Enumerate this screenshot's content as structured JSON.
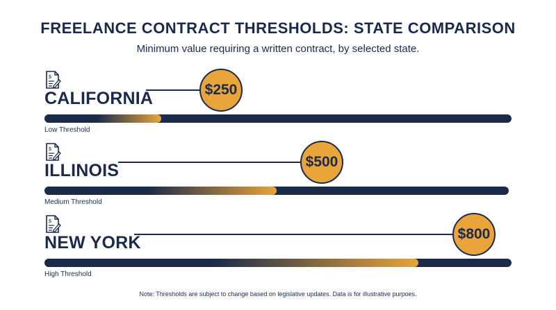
{
  "title": "FREELANCE CONTRACT THRESHOLDS: STATE COMPARISON",
  "subtitle": "Minimum value requiring a written contract, by selected state.",
  "note": "Note: Thresholds are subject to change based on legislative updates. Data is for illustrative purpoes.",
  "colors": {
    "navy": "#1b2a4a",
    "gold": "#e9a43a"
  },
  "icon": "contract-document-icon",
  "chart_data": {
    "type": "bar",
    "categories": [
      "CALIFORNIA",
      "ILLINOIS",
      "NEW YORK"
    ],
    "values": [
      250,
      500,
      800
    ],
    "value_labels": [
      "$250",
      "$500",
      "$800"
    ],
    "level_labels": [
      "Low Threshold",
      "Medium Threshold",
      "High Threshold"
    ],
    "xlim": [
      0,
      1000
    ],
    "grid": false,
    "legend": "none"
  },
  "states": [
    {
      "name": "CALIFORNIA",
      "value_label": "$250",
      "level": "Low Threshold"
    },
    {
      "name": "ILLINOIS",
      "value_label": "$500",
      "level": "Medium Threshold"
    },
    {
      "name": "NEW YORK",
      "value_label": "$800",
      "level": "High Threshold"
    }
  ]
}
